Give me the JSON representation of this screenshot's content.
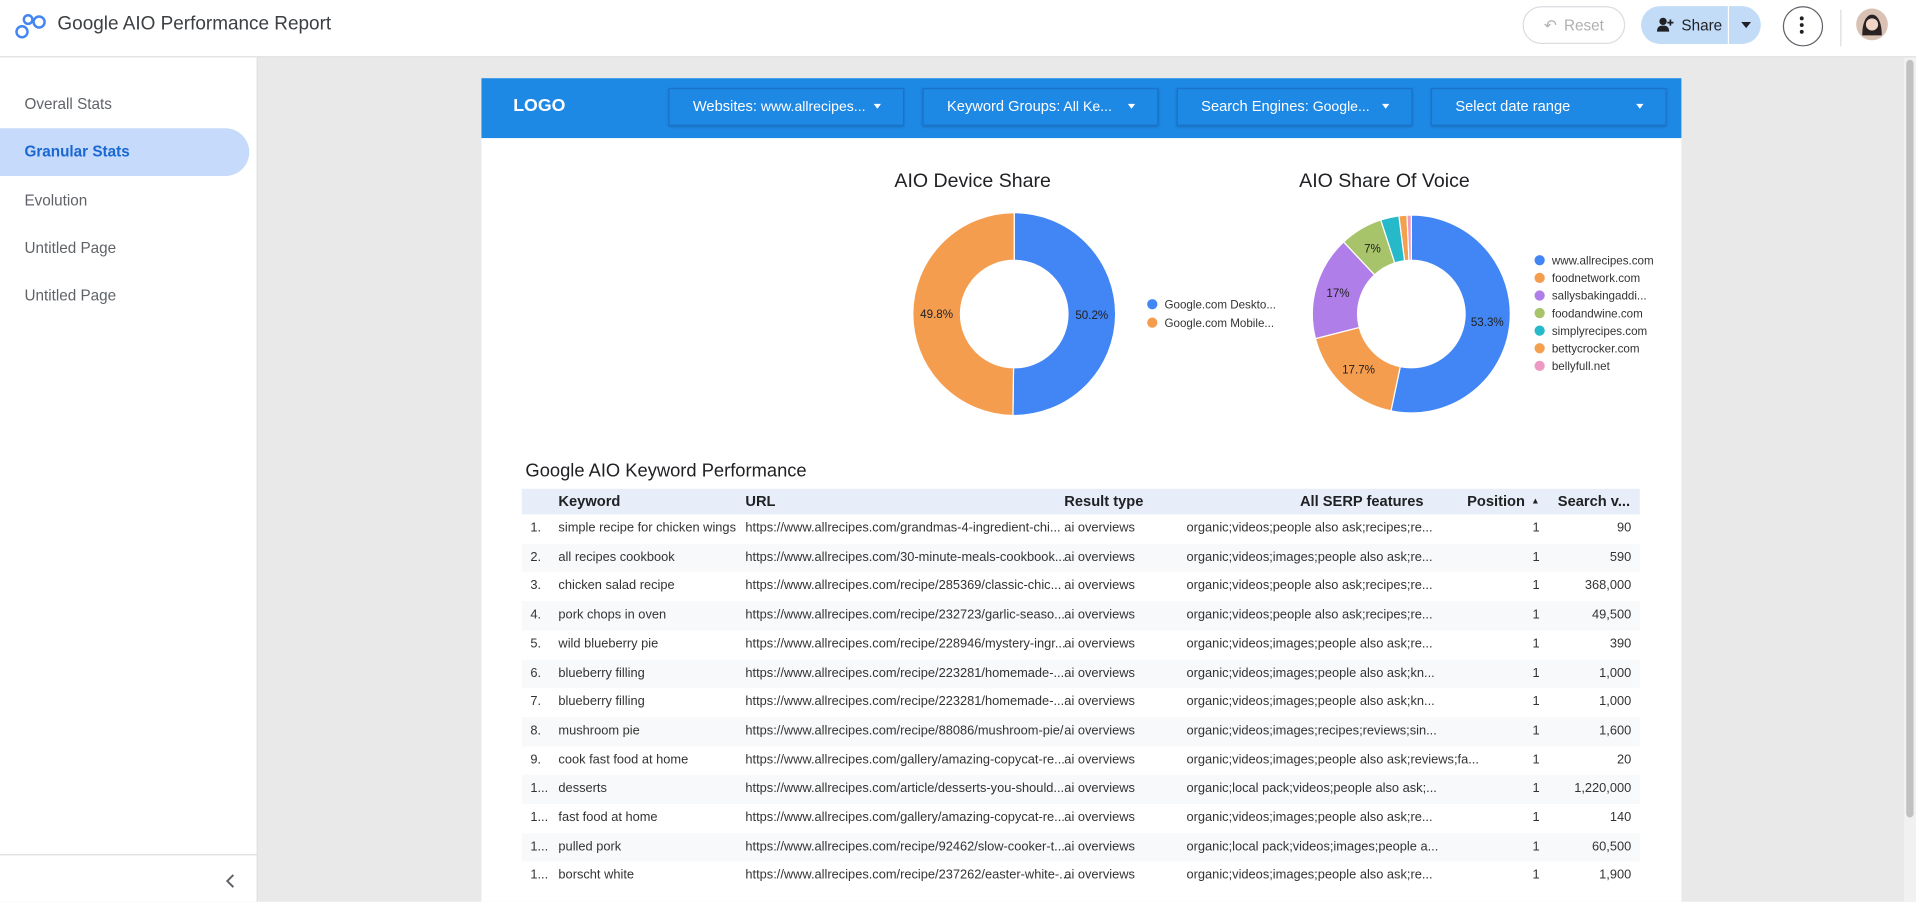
{
  "header": {
    "title": "Google AIO Performance Report",
    "buttons": [
      "Reset",
      "Share"
    ]
  },
  "sidebar": {
    "items": [
      "Overall Stats",
      "Granular Stats",
      "Evolution",
      "Untitled Page",
      "Untitled Page"
    ],
    "selected": 1
  },
  "report": {
    "logo": "LOGO",
    "filters": [
      {
        "label": "Websites:",
        "value": "www.allrecipes..."
      },
      {
        "label": "Keyword Groups:",
        "value": "All Ke..."
      },
      {
        "label": "Search Engines:",
        "value": "Google..."
      },
      {
        "label": "Select date range",
        "value": null
      }
    ]
  },
  "chart_data": [
    {
      "type": "pie",
      "title": "AIO Device Share",
      "categories": [
        "Google.com Deskto...",
        "Google.com Mobile..."
      ],
      "values": [
        50.2,
        49.8
      ],
      "value_labels": [
        "50.2%",
        "49.8%"
      ],
      "colors": [
        "#4285f4",
        "#f59d4f"
      ],
      "donut": true
    },
    {
      "type": "pie",
      "title": "AIO Share Of Voice",
      "categories": [
        "www.allrecipes.com",
        "foodnetwork.com",
        "sallysbakingaddi...",
        "foodandwine.com",
        "simplyrecipes.com",
        "bettycrocker.com",
        "bellyfull.net"
      ],
      "values": [
        53.3,
        17.7,
        17,
        7,
        3,
        1.3,
        0.7
      ],
      "value_labels": [
        "53.3%",
        "17.7%",
        "17%",
        "7%",
        null,
        null,
        null
      ],
      "colors": [
        "#4285f4",
        "#f59d4f",
        "#b07ee8",
        "#a8c46a",
        "#25b9c9",
        "#f4a04f",
        "#ec9ac4"
      ],
      "donut": true
    }
  ],
  "table": {
    "title": "Google AIO Keyword Performance",
    "columns": [
      "Keyword",
      "URL",
      "Result type",
      "All SERP features",
      "Position",
      "Search v..."
    ],
    "rows": [
      [
        "1.",
        "simple recipe for chicken wings",
        "https://www.allrecipes.com/grandmas-4-ingredient-chi...",
        "ai overviews",
        "organic;videos;people also ask;recipes;re...",
        "1",
        "90"
      ],
      [
        "2.",
        "all recipes cookbook",
        "https://www.allrecipes.com/30-minute-meals-cookbook...",
        "ai overviews",
        "organic;videos;images;people also ask;re...",
        "1",
        "590"
      ],
      [
        "3.",
        "chicken salad recipe",
        "https://www.allrecipes.com/recipe/285369/classic-chic...",
        "ai overviews",
        "organic;videos;people also ask;recipes;re...",
        "1",
        "368,000"
      ],
      [
        "4.",
        "pork chops in oven",
        "https://www.allrecipes.com/recipe/232723/garlic-seaso...",
        "ai overviews",
        "organic;videos;people also ask;recipes;re...",
        "1",
        "49,500"
      ],
      [
        "5.",
        "wild blueberry pie",
        "https://www.allrecipes.com/recipe/228946/mystery-ingr...",
        "ai overviews",
        "organic;videos;images;people also ask;re...",
        "1",
        "390"
      ],
      [
        "6.",
        "blueberry filling",
        "https://www.allrecipes.com/recipe/223281/homemade-...",
        "ai overviews",
        "organic;videos;images;people also ask;kn...",
        "1",
        "1,000"
      ],
      [
        "7.",
        "blueberry filling",
        "https://www.allrecipes.com/recipe/223281/homemade-...",
        "ai overviews",
        "organic;videos;images;people also ask;kn...",
        "1",
        "1,000"
      ],
      [
        "8.",
        "mushroom pie",
        "https://www.allrecipes.com/recipe/88086/mushroom-pie/",
        "ai overviews",
        "organic;videos;images;recipes;reviews;sin...",
        "1",
        "1,600"
      ],
      [
        "9.",
        "cook fast food at home",
        "https://www.allrecipes.com/gallery/amazing-copycat-re...",
        "ai overviews",
        "organic;videos;images;people also ask;reviews;fa...",
        "1",
        "20"
      ],
      [
        "1...",
        "desserts",
        "https://www.allrecipes.com/article/desserts-you-should...",
        "ai overviews",
        "organic;local pack;videos;people also ask;...",
        "1",
        "1,220,000"
      ],
      [
        "1...",
        "fast food at home",
        "https://www.allrecipes.com/gallery/amazing-copycat-re...",
        "ai overviews",
        "organic;videos;images;people also ask;re...",
        "1",
        "140"
      ],
      [
        "1...",
        "pulled pork",
        "https://www.allrecipes.com/recipe/92462/slow-cooker-t...",
        "ai overviews",
        "organic;local pack;videos;images;people a...",
        "1",
        "60,500"
      ],
      [
        "1...",
        "borscht white",
        "https://www.allrecipes.com/recipe/237262/easter-white-...",
        "ai overviews",
        "organic;videos;images;people also ask;re...",
        "1",
        "1,900"
      ]
    ]
  }
}
